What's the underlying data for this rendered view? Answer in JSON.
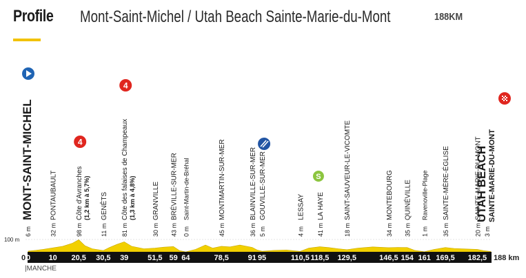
{
  "header": {
    "title": "Profile",
    "route": "Mont-Saint-Michel / Utah Beach Sainte-Marie-du-Mont",
    "distance": "188KM"
  },
  "footer": {
    "region": "MANCHE"
  },
  "colors": {
    "accent": "#f2c200",
    "profile_fill": "#f2d000",
    "axis": "#111111",
    "start_marker": "#1f64b4",
    "cat4_marker": "#e0261f",
    "sprint_marker": "#8cc53f",
    "intermediate_marker": "#2255a4",
    "finish_marker": "#e0261f"
  },
  "chart_data": {
    "type": "area",
    "x_unit": "km",
    "y_unit": "m",
    "ylim": [
      0,
      100
    ],
    "xlim": [
      0,
      188
    ],
    "y_ticks": [
      {
        "value": 0,
        "label": "0"
      },
      {
        "value": 100,
        "label": "100 m"
      }
    ],
    "x_end_label": "188 km",
    "profile": [
      [
        0,
        6
      ],
      [
        3,
        12
      ],
      [
        6,
        20
      ],
      [
        10,
        32
      ],
      [
        14,
        45
      ],
      [
        18,
        70
      ],
      [
        20.5,
        98
      ],
      [
        23,
        50
      ],
      [
        26,
        25
      ],
      [
        30.5,
        11
      ],
      [
        33,
        35
      ],
      [
        36,
        60
      ],
      [
        39,
        81
      ],
      [
        42,
        45
      ],
      [
        47,
        25
      ],
      [
        51.5,
        30
      ],
      [
        55,
        38
      ],
      [
        59,
        43
      ],
      [
        61.5,
        10
      ],
      [
        64,
        0
      ],
      [
        68,
        20
      ],
      [
        72,
        55
      ],
      [
        75,
        30
      ],
      [
        78.5,
        45
      ],
      [
        82,
        40
      ],
      [
        86,
        55
      ],
      [
        91,
        36
      ],
      [
        93,
        15
      ],
      [
        95,
        5
      ],
      [
        100,
        12
      ],
      [
        105,
        15
      ],
      [
        110.5,
        4
      ],
      [
        114,
        30
      ],
      [
        118.5,
        41
      ],
      [
        122,
        35
      ],
      [
        126,
        25
      ],
      [
        129.5,
        18
      ],
      [
        134,
        30
      ],
      [
        140,
        40
      ],
      [
        146.5,
        34
      ],
      [
        150,
        36
      ],
      [
        154,
        35
      ],
      [
        157,
        12
      ],
      [
        161,
        1
      ],
      [
        165,
        20
      ],
      [
        169.5,
        35
      ],
      [
        173,
        28
      ],
      [
        177,
        24
      ],
      [
        182.5,
        20
      ],
      [
        185,
        10
      ],
      [
        188,
        3
      ]
    ],
    "waypoints": [
      {
        "km": "0",
        "x": 0,
        "alt": "6 m",
        "name": "MONT-SAINT-MICHEL",
        "style": "start"
      },
      {
        "km": "10",
        "x": 10,
        "alt": "32 m",
        "name": "PONTAUBAULT",
        "style": "normal"
      },
      {
        "km": "20,5",
        "x": 20.5,
        "alt": "98 m",
        "name": "Côte d'Avranches",
        "sub": "(1,2 km à 5,7%)",
        "style": "climb",
        "marker": "4"
      },
      {
        "km": "30,5",
        "x": 30.5,
        "alt": "11 m",
        "name": "GENÊTS",
        "style": "normal"
      },
      {
        "km": "39",
        "x": 39,
        "alt": "81 m",
        "name": "Côte des falaises de Champeaux",
        "sub": "(1,3 km à 4,8%)",
        "style": "climb",
        "marker": "4"
      },
      {
        "km": "51,5",
        "x": 51.5,
        "alt": "30 m",
        "name": "GRANVILLE",
        "style": "normal"
      },
      {
        "km": "59",
        "x": 59,
        "alt": "43 m",
        "name": "BRÉVILLE-SUR-MER",
        "style": "normal"
      },
      {
        "km": "64",
        "x": 64,
        "alt": "0 m",
        "name": "Saint-Martin-de-Bréhal",
        "style": "small"
      },
      {
        "km": "78,5",
        "x": 78.5,
        "alt": "45 m",
        "name": "MONTMARTIN-SUR-MER",
        "style": "normal"
      },
      {
        "km": "91",
        "x": 91,
        "alt": "36 m",
        "name": "BLAINVILLE-SUR-MER",
        "style": "normal"
      },
      {
        "km": "95",
        "x": 95,
        "alt": "5 m",
        "name": "GOUVILLE-SUR-MER",
        "style": "normal",
        "marker": "intermediate"
      },
      {
        "km": "110,5",
        "x": 110.5,
        "alt": "4 m",
        "name": "LESSAY",
        "style": "normal"
      },
      {
        "km": "118,5",
        "x": 118.5,
        "alt": "41 m",
        "name": "LA HAYE",
        "style": "normal",
        "marker": "sprint"
      },
      {
        "km": "129,5",
        "x": 129.5,
        "alt": "18 m",
        "name": "SAINT-SAUVEUR-LE-VICOMTE",
        "style": "normal"
      },
      {
        "km": "146,5",
        "x": 146.5,
        "alt": "34 m",
        "name": "MONTEBOURG",
        "style": "normal"
      },
      {
        "km": "154",
        "x": 154,
        "alt": "35 m",
        "name": "QUINÉVILLE",
        "style": "normal"
      },
      {
        "km": "161",
        "x": 161,
        "alt": "1 m",
        "name": "Ravenoville-Plage",
        "style": "small"
      },
      {
        "km": "169,5",
        "x": 169.5,
        "alt": "35 m",
        "name": "SAINTE-MÈRE-ÉGLISE",
        "style": "normal"
      },
      {
        "km": "182,5",
        "x": 182.5,
        "alt": "20 m",
        "name": "SAINTE-MARIE-DU-MONT",
        "style": "normal"
      },
      {
        "km": "",
        "x": 188,
        "alt": "3 m",
        "name": "UTAH BEACH",
        "sub": "SAINTE-MARIE-DU-MONT",
        "style": "finish"
      }
    ]
  }
}
